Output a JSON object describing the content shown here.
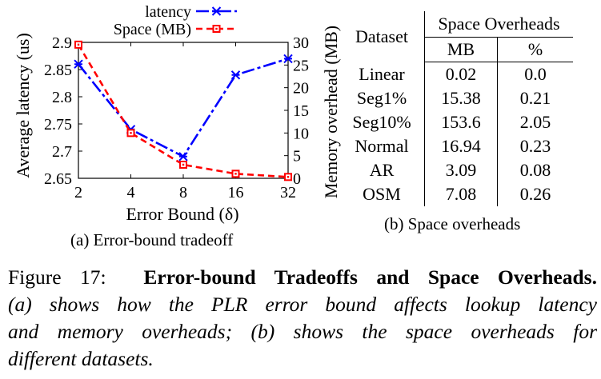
{
  "chart_data": {
    "type": "line",
    "x": [
      2,
      4,
      8,
      16,
      32
    ],
    "x_scale": "log2",
    "xticks": [
      "2",
      "4",
      "8",
      "16",
      "32"
    ],
    "xlabel": "Error Bound (δ)",
    "ylabel": "Average latency (us)",
    "y2label": "Memory overhead (MB)",
    "ylim": [
      2.65,
      2.9
    ],
    "y2lim": [
      0,
      30
    ],
    "yticks": [
      "2.65",
      "2.7",
      "2.75",
      "2.8",
      "2.85",
      "2.9"
    ],
    "y2ticks": [
      "0",
      "5",
      "10",
      "15",
      "20",
      "25",
      "30"
    ],
    "legend_position": "top",
    "series": [
      {
        "name": "latency",
        "axis": "left",
        "color": "#0000ff",
        "marker": "star",
        "values": [
          2.86,
          2.74,
          2.69,
          2.84,
          2.87
        ]
      },
      {
        "name": "Space (MB)",
        "axis": "right",
        "color": "#ff0000",
        "marker": "square",
        "values": [
          29.5,
          10,
          3,
          1,
          0.3
        ]
      }
    ]
  },
  "captions": {
    "a": "(a) Error-bound tradeoff",
    "b": "(b) Space overheads"
  },
  "table": {
    "header_dataset": "Dataset",
    "header_group": "Space Overheads",
    "header_mb": "MB",
    "header_pct": "%",
    "rows": [
      {
        "dataset": "Linear",
        "mb": "0.02",
        "pct": "0.0"
      },
      {
        "dataset": "Seg1%",
        "mb": "15.38",
        "pct": "0.21"
      },
      {
        "dataset": "Seg10%",
        "mb": "153.6",
        "pct": "2.05"
      },
      {
        "dataset": "Normal",
        "mb": "16.94",
        "pct": "0.23"
      },
      {
        "dataset": "AR",
        "mb": "3.09",
        "pct": "0.08"
      },
      {
        "dataset": "OSM",
        "mb": "7.08",
        "pct": "0.26"
      }
    ]
  },
  "figure": {
    "label": "Figure 17:",
    "title": "Error-bound Tradeoffs and Space Overheads.",
    "desc_line1": "(a) shows how the PLR error bound affects lookup latency",
    "desc_line2": "and memory overheads; (b) shows the space overheads for",
    "desc_line3": "different datasets."
  }
}
